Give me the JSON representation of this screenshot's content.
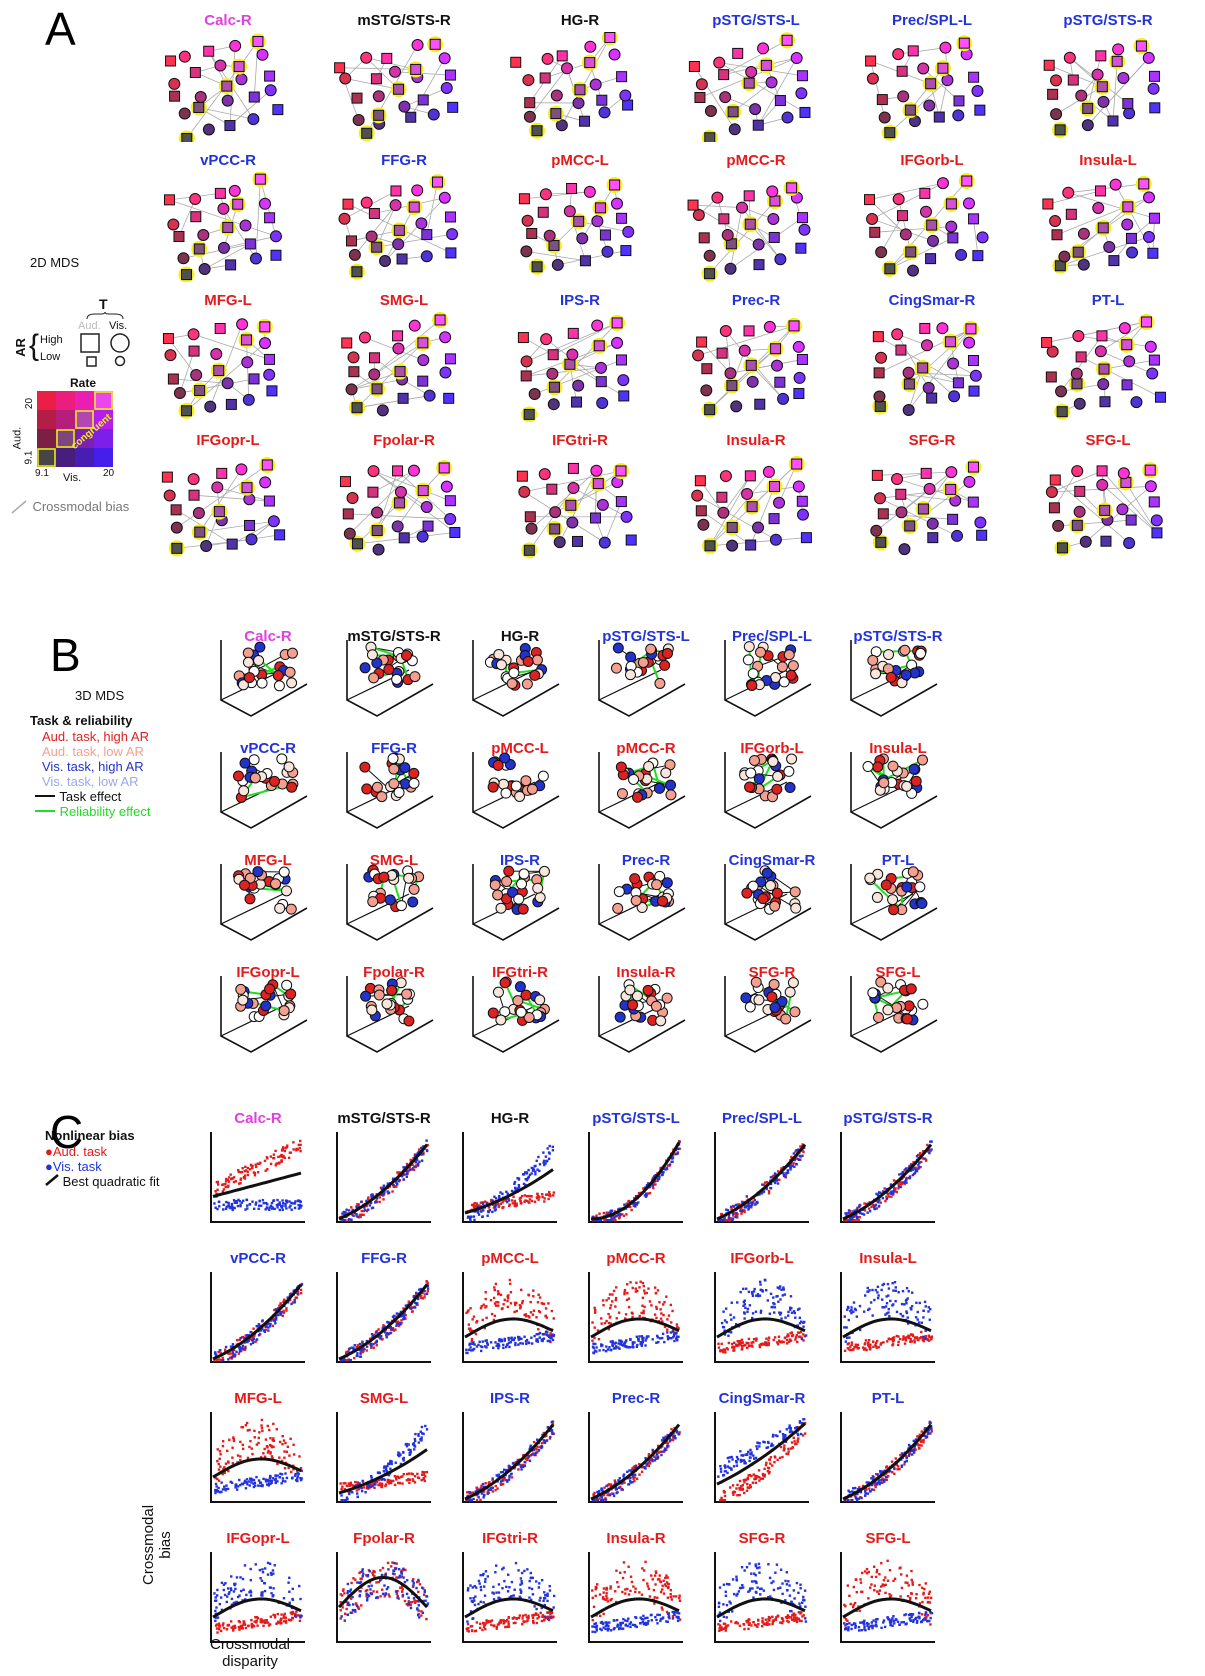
{
  "colors": {
    "magenta": "#e040e0",
    "black": "#111111",
    "blue": "#2233dd",
    "red": "#e51a1a",
    "aud_high": "#dd2222",
    "aud_low": "#f3a090",
    "vis_high": "#2233cc",
    "vis_low": "#9aa8ee",
    "reliability_green": "#22dd22",
    "bias_gray": "#aaaaaa",
    "highlight_yellow": "#f5ef1a"
  },
  "rois": [
    {
      "name": "Calc-R",
      "color": "magenta"
    },
    {
      "name": "mSTG/STS-R",
      "color": "black"
    },
    {
      "name": "HG-R",
      "color": "black"
    },
    {
      "name": "pSTG/STS-L",
      "color": "blue"
    },
    {
      "name": "Prec/SPL-L",
      "color": "blue"
    },
    {
      "name": "pSTG/STS-R",
      "color": "blue"
    },
    {
      "name": "vPCC-R",
      "color": "blue"
    },
    {
      "name": "FFG-R",
      "color": "blue"
    },
    {
      "name": "pMCC-L",
      "color": "red"
    },
    {
      "name": "pMCC-R",
      "color": "red"
    },
    {
      "name": "IFGorb-L",
      "color": "red"
    },
    {
      "name": "Insula-L",
      "color": "red"
    },
    {
      "name": "MFG-L",
      "color": "red"
    },
    {
      "name": "SMG-L",
      "color": "red"
    },
    {
      "name": "IPS-R",
      "color": "blue"
    },
    {
      "name": "Prec-R",
      "color": "blue"
    },
    {
      "name": "CingSmar-R",
      "color": "blue"
    },
    {
      "name": "PT-L",
      "color": "blue"
    },
    {
      "name": "IFGopr-L",
      "color": "red"
    },
    {
      "name": "Fpolar-R",
      "color": "red"
    },
    {
      "name": "IFGtri-R",
      "color": "red"
    },
    {
      "name": "Insula-R",
      "color": "red"
    },
    {
      "name": "SFG-R",
      "color": "red"
    },
    {
      "name": "SFG-L",
      "color": "red"
    }
  ],
  "panel_a": {
    "letter": "A",
    "method": "2D MDS",
    "legend": {
      "t_label": "T",
      "aud": "Aud.",
      "vis": "Vis.",
      "ar_label": "AR",
      "high": "High",
      "low": "Low",
      "rate_title": "Rate",
      "rate_aud": "Aud.",
      "rate_vis": "Vis.",
      "tick_20": "20",
      "tick_91": "9.1",
      "congruent": "congruent",
      "bias_label": "Crossmodal bias"
    }
  },
  "panel_b": {
    "letter": "B",
    "method": "3D MDS",
    "legend": {
      "title": "Task & reliability",
      "items": [
        {
          "label": "Aud. task, high AR",
          "color": "aud_high"
        },
        {
          "label": "Aud. task, low AR",
          "color": "aud_low"
        },
        {
          "label": "Vis. task, high AR",
          "color": "vis_high"
        },
        {
          "label": "Vis. task, low AR",
          "color": "vis_low"
        }
      ],
      "task_effect": "Task effect",
      "reliability_effect": "Reliability effect"
    }
  },
  "panel_c": {
    "letter": "C",
    "legend": {
      "title": "Nonlinear bias",
      "aud_task": "Aud. task",
      "vis_task": "Vis. task",
      "fit": "Best quadratic fit"
    },
    "ylabel_line1": "Crossmodal",
    "ylabel_line2": "bias",
    "xlabel_line1": "Crossmodal",
    "xlabel_line2": "disparity",
    "shapes": [
      {
        "roi": "Calc-R",
        "aud": "steep",
        "vis": "flat"
      },
      {
        "roi": "mSTG/STS-R",
        "aud": "rise",
        "vis": "rise"
      },
      {
        "roi": "HG-R",
        "aud": "low",
        "vis": "rise"
      },
      {
        "roi": "pSTG/STS-L",
        "aud": "convex",
        "vis": "convex"
      },
      {
        "roi": "Prec/SPL-L",
        "aud": "rise",
        "vis": "rise"
      },
      {
        "roi": "pSTG/STS-R",
        "aud": "rise",
        "vis": "rise"
      },
      {
        "roi": "vPCC-R",
        "aud": "rise",
        "vis": "rise"
      },
      {
        "roi": "FFG-R",
        "aud": "rise",
        "vis": "rise"
      },
      {
        "roi": "pMCC-L",
        "aud": "scatter",
        "vis": "low"
      },
      {
        "roi": "pMCC-R",
        "aud": "scatter",
        "vis": "low"
      },
      {
        "roi": "IFGorb-L",
        "aud": "low",
        "vis": "scatter"
      },
      {
        "roi": "Insula-L",
        "aud": "low",
        "vis": "scatter"
      },
      {
        "roi": "MFG-L",
        "aud": "scatter",
        "vis": "low"
      },
      {
        "roi": "SMG-L",
        "aud": "low",
        "vis": "rise"
      },
      {
        "roi": "IPS-R",
        "aud": "rise",
        "vis": "rise"
      },
      {
        "roi": "Prec-R",
        "aud": "rise",
        "vis": "rise"
      },
      {
        "roi": "CingSmar-R",
        "aud": "rise",
        "vis": "steep"
      },
      {
        "roi": "PT-L",
        "aud": "rise",
        "vis": "rise"
      },
      {
        "roi": "IFGopr-L",
        "aud": "low",
        "vis": "scatter"
      },
      {
        "roi": "Fpolar-R",
        "aud": "scatter",
        "vis": "scatter"
      },
      {
        "roi": "IFGtri-R",
        "aud": "low",
        "vis": "scatter"
      },
      {
        "roi": "Insula-R",
        "aud": "scatter",
        "vis": "low"
      },
      {
        "roi": "SFG-R",
        "aud": "low",
        "vis": "scatter"
      },
      {
        "roi": "SFG-L",
        "aud": "scatter",
        "vis": "low"
      }
    ]
  }
}
